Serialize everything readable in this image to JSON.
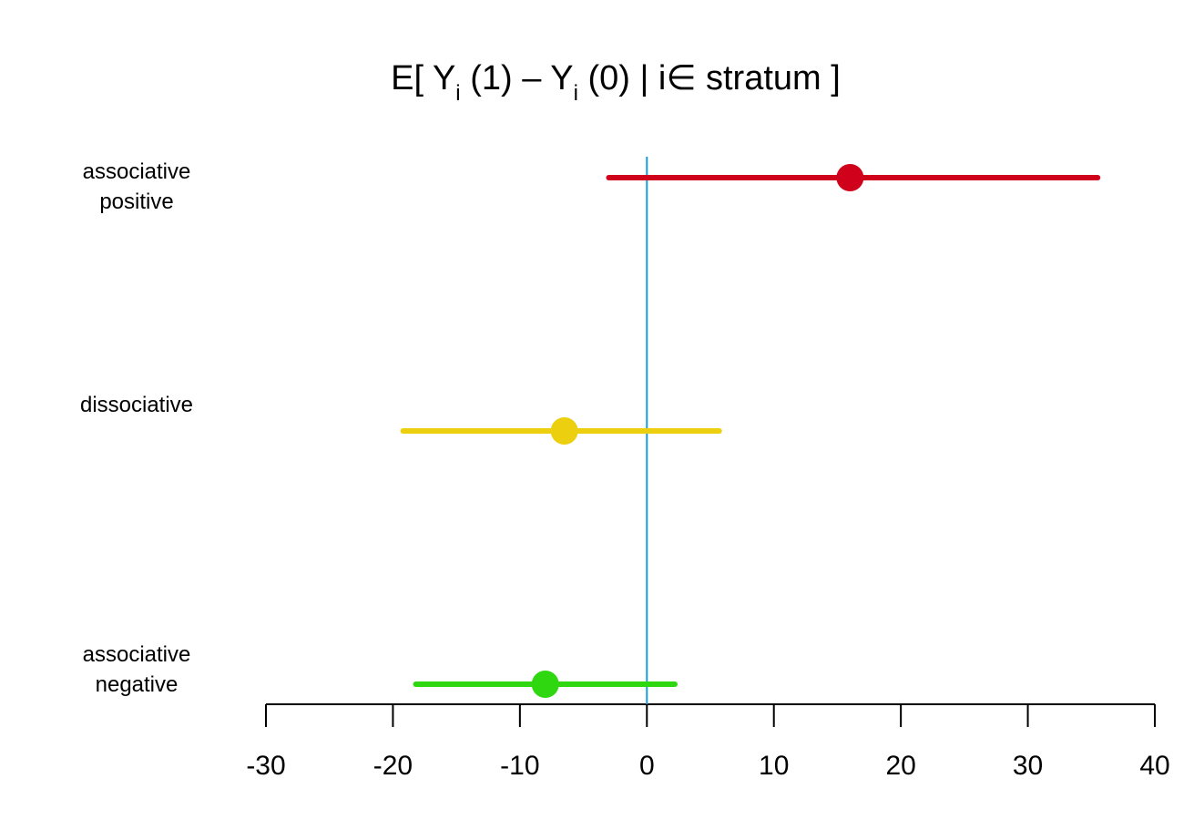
{
  "chart_data": {
    "type": "scatter",
    "title": {
      "prefix": "E[ Y",
      "sub1": "i",
      "middle": " (1) – Y",
      "sub2": "i",
      "suffix": " (0) |  i∈  stratum ]"
    },
    "xlabel": "",
    "ylabel": "",
    "xlim": [
      -30,
      40
    ],
    "xticks": [
      -30,
      -20,
      -10,
      0,
      10,
      20,
      30,
      40
    ],
    "xtick_labels": [
      "-30",
      "-20",
      "-10",
      "0",
      "10",
      "20",
      "30",
      "40"
    ],
    "reference_line": {
      "x": 0,
      "color": "#1a9be0"
    },
    "grid": false,
    "series": [
      {
        "label_lines": [
          "associative",
          "positive"
        ],
        "estimate": 16,
        "lower": -3,
        "upper": 35.5,
        "color": "#d0021b"
      },
      {
        "label_lines": [
          "dissociative"
        ],
        "estimate": -6.5,
        "lower": -19.2,
        "upper": 5.7,
        "color": "#ecd00f"
      },
      {
        "label_lines": [
          "associative",
          "negative"
        ],
        "estimate": -8,
        "lower": -18.2,
        "upper": 2.2,
        "color": "#2ed70f"
      }
    ]
  }
}
